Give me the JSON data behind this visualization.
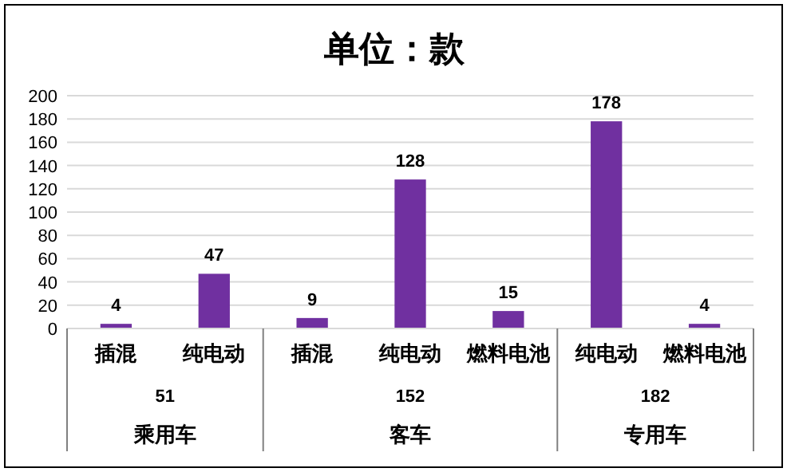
{
  "chart_data": {
    "type": "bar",
    "title": "单位：款",
    "categories": [
      "插混",
      "纯电动",
      "插混",
      "纯电动",
      "燃料电池",
      "纯电动",
      "燃料电池"
    ],
    "values": [
      4,
      47,
      9,
      128,
      15,
      178,
      4
    ],
    "color": "#7030a0",
    "ylim": [
      0,
      200
    ],
    "yticks": [
      0,
      20,
      40,
      60,
      80,
      100,
      120,
      140,
      160,
      180,
      200
    ],
    "grid": "y",
    "data_labels": true,
    "annotations": [
      "51",
      "乘用车",
      "152",
      "客车",
      "182",
      "专用车"
    ]
  }
}
